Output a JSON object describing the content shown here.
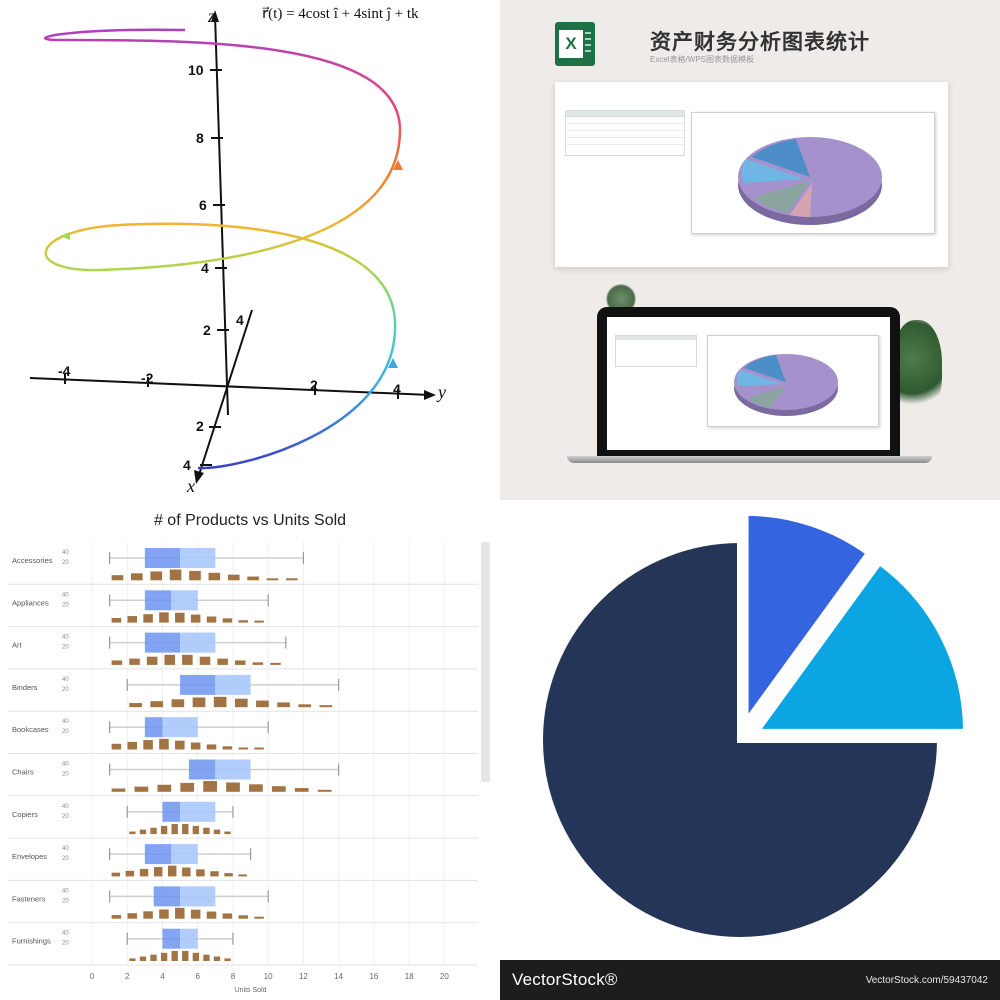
{
  "helix": {
    "equation": "r⃗(t) = 4cost î + 4sint ĵ + tk",
    "z_label": "z",
    "y_label": "y",
    "x_label": "x",
    "z_ticks": [
      "10",
      "8",
      "6",
      "4",
      "2"
    ],
    "y_ticks": [
      "-4",
      "-2",
      "2",
      "4"
    ],
    "x_ticks": [
      "2",
      "4"
    ],
    "depth_ticks": [
      "4",
      "2"
    ]
  },
  "excel": {
    "logo_letter": "X",
    "title": "资产财务分析图表统计",
    "subtitle": "Excel表格/WPS图表数据模板"
  },
  "chart_data": [
    {
      "type": "box",
      "title": "# of Products vs Units Sold",
      "xlabel": "Units Sold",
      "ylabel": "",
      "x_ticks": [
        "0",
        "2",
        "4",
        "6",
        "8",
        "10",
        "12",
        "14",
        "16",
        "18",
        "20"
      ],
      "xlim": [
        0,
        21
      ],
      "y_sub_ticks": [
        "40",
        "20"
      ],
      "categories": [
        "Accessories",
        "Appliances",
        "Art",
        "Binders",
        "Bookcases",
        "Chairs",
        "Copiers",
        "Envelopes",
        "Fasteners",
        "Furnishings"
      ],
      "series": [
        {
          "min": 1,
          "q1": 3,
          "median": 5,
          "q3": 7,
          "max": 12
        },
        {
          "min": 1,
          "q1": 3,
          "median": 4.5,
          "q3": 6,
          "max": 10
        },
        {
          "min": 1,
          "q1": 3,
          "median": 5,
          "q3": 7,
          "max": 11
        },
        {
          "min": 2,
          "q1": 5,
          "median": 7,
          "q3": 9,
          "max": 14
        },
        {
          "min": 1,
          "q1": 3,
          "median": 4,
          "q3": 6,
          "max": 10
        },
        {
          "min": 1,
          "q1": 5.5,
          "median": 7,
          "q3": 9,
          "max": 14
        },
        {
          "min": 2,
          "q1": 4,
          "median": 5,
          "q3": 7,
          "max": 8
        },
        {
          "min": 1,
          "q1": 3,
          "median": 4.5,
          "q3": 6,
          "max": 9
        },
        {
          "min": 1,
          "q1": 3.5,
          "median": 5,
          "q3": 7,
          "max": 10
        },
        {
          "min": 2,
          "q1": 4,
          "median": 5,
          "q3": 6,
          "max": 8
        }
      ]
    },
    {
      "type": "pie",
      "title": "",
      "values": [
        75,
        10,
        15
      ],
      "colors": [
        "#243558",
        "#3564e0",
        "#0ba5e4"
      ],
      "exploded": [
        false,
        true,
        true
      ]
    }
  ],
  "footer": {
    "brand": "VectorStock®",
    "url": "VectorStock.com/59437042"
  },
  "colors": {
    "pie_navy": "#243558",
    "pie_blue": "#3564e0",
    "pie_cyan": "#0ba5e4",
    "excel_green": "#1e7145",
    "box_blue": "#6c94f0",
    "box_light": "#a8c8fb",
    "hist_brown": "#a27443"
  }
}
